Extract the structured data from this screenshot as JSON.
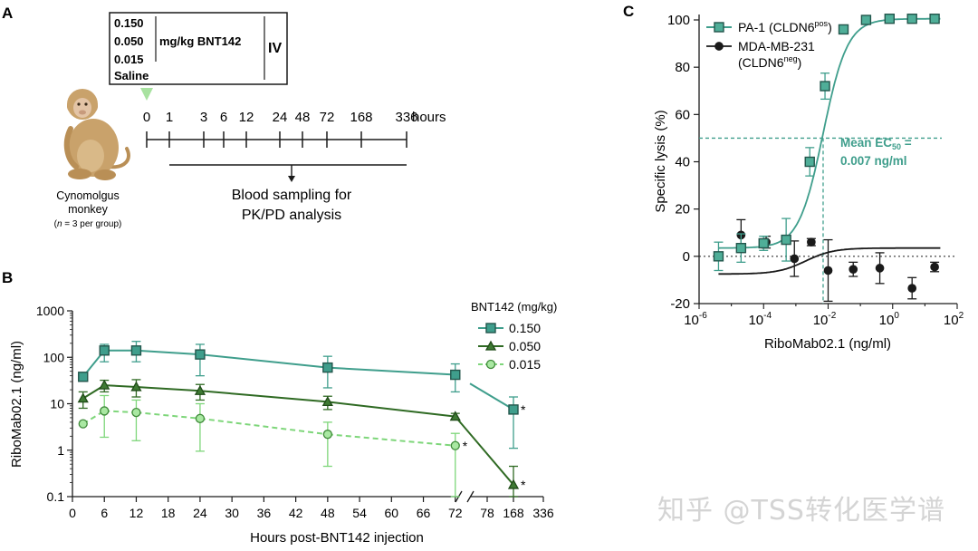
{
  "panelA": {
    "letter": "A",
    "doses": [
      "0.150",
      "0.050",
      "0.015"
    ],
    "dose_unit": "mg/kg BNT142",
    "saline": "Saline",
    "route": "IV",
    "ticks": [
      "0",
      "1",
      "3",
      "6",
      "12",
      "24",
      "48",
      "72",
      "168",
      "336"
    ],
    "ticks_unit": "hours",
    "sampling_line1": "Blood sampling for",
    "sampling_line2": "PK/PD analysis",
    "species_line1": "Cynomolgus",
    "species_line2": "monkey",
    "group_n": "n",
    "group_rest": " = 3 per group)",
    "group_open": "("
  },
  "colors": {
    "teal": "#3f9e8c",
    "teal_fill": "#3f9e8c",
    "dark_green": "#2f6a23",
    "light_green": "#7ed67a",
    "light_green_fill": "#a9e8a2",
    "black": "#1a1a1a",
    "triangle_marker": "#a8e2a0"
  },
  "chart_data": [
    {
      "type": "line",
      "panel": "B",
      "ylabel": "RiboMab02.1 (ng/ml)",
      "xlabel": "Hours post-BNT142 injection",
      "yscale": "log",
      "ylim": [
        0.1,
        1000
      ],
      "yticks": [
        "0.1",
        "1",
        "10",
        "100",
        "1000"
      ],
      "xticks": [
        "0",
        "6",
        "12",
        "18",
        "24",
        "30",
        "36",
        "42",
        "48",
        "54",
        "60",
        "66",
        "72",
        "78",
        "168",
        "336"
      ],
      "x_break": "between 78 and 168",
      "legend_title": "BNT142 (mg/kg)",
      "legend_position": "top-right",
      "series": [
        {
          "name": "0.150",
          "marker": "square",
          "line": "solid",
          "x": [
            2,
            6,
            12,
            24,
            48,
            72,
            168
          ],
          "y": [
            38,
            140,
            140,
            115,
            60,
            42,
            7.5
          ],
          "err_low": [
            38,
            80,
            80,
            40,
            22,
            18,
            1.1
          ],
          "err_high": [
            38,
            190,
            220,
            190,
            105,
            72,
            14
          ],
          "star": [
            false,
            false,
            false,
            false,
            false,
            false,
            true
          ]
        },
        {
          "name": "0.050",
          "marker": "triangle",
          "line": "solid",
          "x": [
            2,
            6,
            12,
            24,
            48,
            72,
            168
          ],
          "y": [
            13,
            25,
            23,
            19,
            11,
            5.3,
            0.18
          ],
          "err_low": [
            8,
            18,
            14,
            12,
            7.5,
            4.6,
            0.1
          ],
          "err_high": [
            18,
            32,
            33,
            26,
            14.5,
            6.2,
            0.45
          ],
          "star": [
            false,
            false,
            false,
            false,
            false,
            false,
            true
          ]
        },
        {
          "name": "0.015",
          "marker": "circle",
          "line": "dashed",
          "x": [
            2,
            6,
            12,
            24,
            48,
            72
          ],
          "y": [
            3.7,
            7,
            6.5,
            4.8,
            2.2,
            1.25
          ],
          "err_low": [
            3.7,
            1.9,
            1.6,
            0.95,
            0.45,
            0.1
          ],
          "err_high": [
            3.7,
            15,
            12,
            10,
            4,
            2.3
          ],
          "star": [
            false,
            false,
            false,
            false,
            false,
            true
          ]
        }
      ]
    },
    {
      "type": "scatter",
      "panel": "C",
      "ylabel": "Specific lysis (%)",
      "xlabel": "RiboMab02.1 (ng/ml)",
      "xscale": "log",
      "xlim": [
        1e-06,
        100
      ],
      "ylim": [
        -20,
        100
      ],
      "yticks": [
        "-20",
        "0",
        "20",
        "40",
        "60",
        "80",
        "100"
      ],
      "xticks": [
        {
          "base": "10",
          "exp": "-6"
        },
        {
          "base": "10",
          "exp": "-4"
        },
        {
          "base": "10",
          "exp": "-2"
        },
        {
          "base": "10",
          "exp": "0"
        },
        {
          "base": "10",
          "exp": "2"
        }
      ],
      "legend_position": "top-left",
      "series": [
        {
          "name": "PA-1 (CLDN6",
          "sup": "pos",
          "close": ")",
          "marker": "square",
          "x": [
            4e-06,
            2e-05,
            0.0001,
            0.0005,
            0.0027,
            0.008,
            0.03,
            0.15,
            0.8,
            4,
            20
          ],
          "y": [
            0,
            3.5,
            5.5,
            7,
            40,
            72,
            96,
            100,
            100.5,
            100.5,
            100.5
          ],
          "err": [
            6,
            6,
            3,
            9,
            6,
            5.5,
            1.5,
            0.5,
            0.3,
            0.3,
            0.3
          ],
          "curve": {
            "bottom": 3.5,
            "top": 100.5,
            "ec50": 0.007,
            "hill": 1.15
          }
        },
        {
          "name": "MDA-MB-231",
          "name_line2_open": "(CLDN6",
          "sup": "neg",
          "close": ")",
          "marker": "circle",
          "x": [
            2e-05,
            0.00012,
            0.0009,
            0.003,
            0.01,
            0.06,
            0.4,
            4,
            20
          ],
          "y": [
            9,
            6,
            -1,
            6,
            -6,
            -5.5,
            -5,
            -13.5,
            -4.5
          ],
          "err": [
            6.5,
            2.5,
            7.5,
            1.5,
            13,
            3,
            6.5,
            4.5,
            2
          ],
          "curve": {
            "bottom": -7.5,
            "top": 3.5,
            "ec50": 0.002,
            "hill": 1.0
          }
        }
      ],
      "annotation_line1": "Mean EC",
      "annotation_sub": "50",
      "annotation_eq": " =",
      "annotation_line2": "0.007 ng/ml",
      "ec50": 0.007,
      "ec50_level": 50
    }
  ],
  "panel_letters": {
    "b": "B",
    "c": "C"
  },
  "star": "*",
  "watermark": "知乎 @TSS转化医学谱"
}
